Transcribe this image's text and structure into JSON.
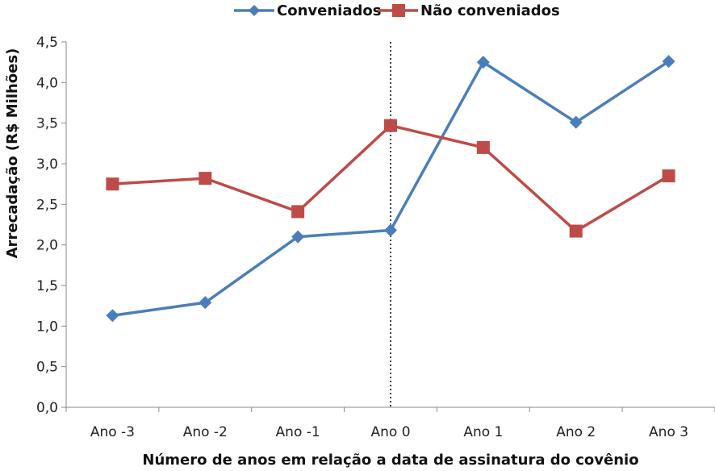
{
  "chart_data": {
    "type": "line",
    "categories": [
      "Ano -3",
      "Ano -2",
      "Ano -1",
      "Ano 0",
      "Ano 1",
      "Ano 2",
      "Ano 3"
    ],
    "series": [
      {
        "name": "Conveniados",
        "color": "#4A7EBB",
        "marker": "diamond",
        "values": [
          1.13,
          1.29,
          2.1,
          2.18,
          4.25,
          3.51,
          4.26
        ]
      },
      {
        "name": "Não conveniados",
        "color": "#BE4B48",
        "marker": "square",
        "values": [
          2.75,
          2.82,
          2.41,
          3.47,
          3.2,
          2.17,
          2.85
        ]
      }
    ],
    "xlabel": "Número de anos em relação a data de assinatura do covênio",
    "ylabel": "Arrecadação (R$ Milhões)",
    "ylim": [
      0,
      4.5
    ],
    "yticks": [
      "0,0",
      "0,5",
      "1,0",
      "1,5",
      "2,0",
      "2,5",
      "3,0",
      "3,5",
      "4,0",
      "4,5"
    ],
    "grid": false,
    "legend_position": "top",
    "reference_line": {
      "category": "Ano 0",
      "style": "dotted",
      "color": "#000000"
    }
  }
}
